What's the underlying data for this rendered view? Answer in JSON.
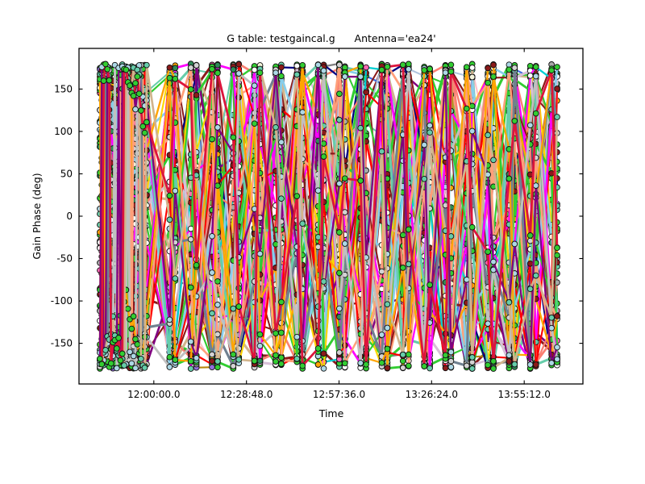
{
  "chart_data": {
    "type": "line+scatter",
    "title": "G table: testgaincal.g      Antenna='ea24'",
    "xlabel": "Time",
    "ylabel": "Gain Phase (deg)",
    "legend": "none",
    "grid": false,
    "background": "#ffffff",
    "frame_color": "#000000",
    "text_color": "#000000",
    "xticks": [
      {
        "seconds": 43200,
        "label": "12:00:00.0"
      },
      {
        "seconds": 44928,
        "label": "12:28:48.0"
      },
      {
        "seconds": 46656,
        "label": "12:57:36.0"
      },
      {
        "seconds": 48384,
        "label": "13:26:24.0"
      },
      {
        "seconds": 50112,
        "label": "13:55:12.0"
      }
    ],
    "yticks": [
      {
        "value": 150,
        "label": "150"
      },
      {
        "value": 100,
        "label": "100"
      },
      {
        "value": 50,
        "label": "50"
      },
      {
        "value": 0,
        "label": "0"
      },
      {
        "value": -50,
        "label": "-50"
      },
      {
        "value": -100,
        "label": "-100"
      },
      {
        "value": -150,
        "label": "-150"
      }
    ],
    "xlim_seconds": [
      41803,
      51208
    ],
    "ylim_deg": [
      -198,
      198
    ],
    "phase_range_deg": [
      -180,
      180
    ],
    "description": "CASA-style gain calibration plot: gain phase vs time for antenna ea24, hundreds of overlapping colored line series with circle markers. A dense continuous scan from ~11:43 to ~11:58 (solid block dominated by green, dark-red and pale-blue markers) is followed by 19 short scan pairs every ~6.6 min until ~14:08; phases wrap chaotically across the full -180..180 deg range producing criss-crossing multicolored lines.",
    "generator": {
      "seed": 1337,
      "series_count": 56,
      "marker_radius": 3.4,
      "marker_edge_color": "#111111",
      "edge_bias": 0.24,
      "block": {
        "t0": 42193,
        "t1": 43065,
        "cols": 26,
        "walk_deg": 27
      },
      "scans": {
        "t_first": 43546,
        "spacing_s": 396,
        "count": 19,
        "pair_offset_s": 52
      },
      "line_width_range": [
        2.0,
        3.2
      ],
      "line_palette": [
        [
          "#32cd32",
          14
        ],
        [
          "#228b22",
          4
        ],
        [
          "#8b1a1a",
          7
        ],
        [
          "#fa8072",
          5
        ],
        [
          "#ffa07a",
          4
        ],
        [
          "#add8e6",
          4
        ],
        [
          "#66cdaa",
          4
        ],
        [
          "#808080",
          4
        ],
        [
          "#c0c0c0",
          4
        ],
        [
          "#d8bfd8",
          3
        ],
        [
          "#ff8c00",
          4
        ],
        [
          "#ffa500",
          3
        ],
        [
          "#9932cc",
          3
        ],
        [
          "#800080",
          3
        ],
        [
          "#ff00ff",
          3
        ],
        [
          "#ff69b4",
          3
        ],
        [
          "#ffc0cb",
          3
        ],
        [
          "#4169e1",
          3
        ],
        [
          "#000080",
          2
        ],
        [
          "#00ced1",
          3
        ],
        [
          "#afeeee",
          3
        ],
        [
          "#ffd700",
          3
        ],
        [
          "#b8860b",
          2
        ],
        [
          "#a0522d",
          2
        ],
        [
          "#d2b48c",
          3
        ],
        [
          "#6b8e23",
          2
        ],
        [
          "#e6e6fa",
          3
        ],
        [
          "#b0c4de",
          3
        ],
        [
          "#ff0000",
          3
        ],
        [
          "#dc143c",
          2
        ],
        [
          "#708090",
          3
        ],
        [
          "#98fb98",
          3
        ],
        [
          "#f0e68c",
          2
        ],
        [
          "#87ceeb",
          3
        ]
      ],
      "marker_palette": [
        [
          "#32cd32",
          30
        ],
        [
          "#8b1a1a",
          16
        ],
        [
          "#add8e6",
          10
        ],
        [
          "#66cdaa",
          8
        ],
        [
          "#fa8072",
          8
        ],
        [
          "#f5f5dc",
          4
        ],
        [
          "#a9a9a9",
          4
        ],
        [
          "#d3d3d3",
          3
        ],
        [
          "#ffffff",
          3
        ],
        [
          "#ffa500",
          3
        ],
        [
          "#ff69b4",
          3
        ],
        [
          "#2e8b57",
          3
        ],
        [
          "#9370db",
          2
        ],
        [
          "#00bfff",
          2
        ]
      ]
    }
  }
}
